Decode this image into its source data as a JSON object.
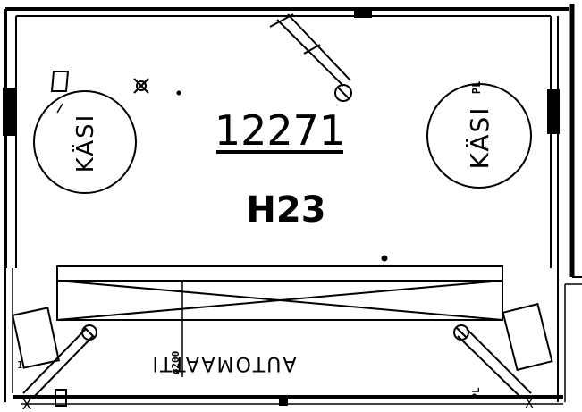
{
  "drawing": {
    "room_number": "12271",
    "room_code": "H23",
    "left_circle_label": "KÄSI",
    "right_circle_label": "KÄSI",
    "right_circle_tag": "PL",
    "automat_label": "AUTOMAATTI",
    "small_tag_automat": "ø200",
    "corner_mark_left": "X",
    "corner_mark_right": "X",
    "tag_bottom_left": "1",
    "tag_bottom_right": "PL"
  },
  "colors": {
    "line": "#000000",
    "background": "#ffffff"
  }
}
